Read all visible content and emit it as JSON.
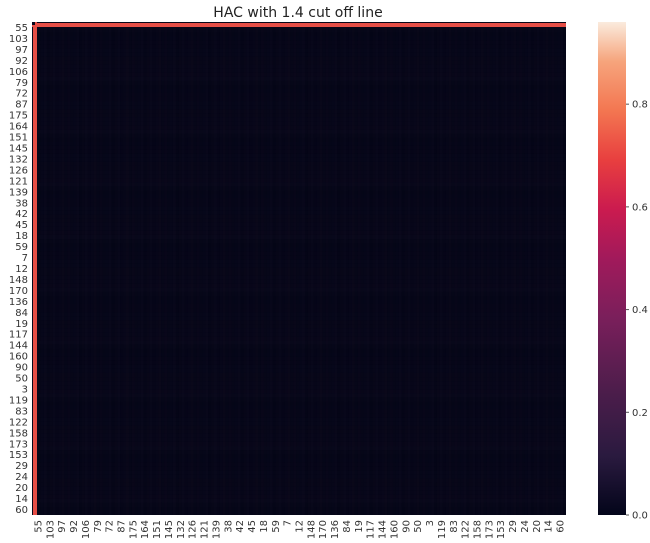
{
  "chart_data": {
    "type": "heatmap",
    "title": "HAC with 1.4 cut off line",
    "xlabel": "",
    "ylabel": "",
    "row_labels": [
      "55",
      "103",
      "97",
      "92",
      "106",
      "79",
      "72",
      "87",
      "175",
      "164",
      "151",
      "145",
      "132",
      "126",
      "121",
      "139",
      "38",
      "42",
      "45",
      "18",
      "59",
      "7",
      "12",
      "148",
      "170",
      "136",
      "84",
      "19",
      "117",
      "144",
      "160",
      "90",
      "50",
      "3",
      "119",
      "83",
      "122",
      "158",
      "173",
      "153",
      "29",
      "24",
      "20",
      "14",
      "60"
    ],
    "col_labels": [
      "55",
      "103",
      "97",
      "92",
      "106",
      "79",
      "72",
      "87",
      "175",
      "164",
      "151",
      "145",
      "132",
      "126",
      "121",
      "139",
      "38",
      "42",
      "45",
      "18",
      "59",
      "7",
      "12",
      "148",
      "170",
      "136",
      "84",
      "19",
      "117",
      "144",
      "160",
      "90",
      "50",
      "3",
      "119",
      "83",
      "122",
      "158",
      "173",
      "153",
      "29",
      "24",
      "20",
      "14",
      "60"
    ],
    "matrix_description_values": {
      "first_row_value": 0.62,
      "first_col_value": 0.62,
      "diagonal_first": 0.0,
      "background_value": 0.03
    },
    "colorbar": {
      "min": 0.0,
      "max": 0.96,
      "ticks": [
        0.0,
        0.2,
        0.4,
        0.6,
        0.8
      ],
      "tick_labels": [
        "0.0",
        "0.2",
        "0.4",
        "0.6",
        "0.8"
      ],
      "colormap": "rocket"
    },
    "grid": false
  }
}
